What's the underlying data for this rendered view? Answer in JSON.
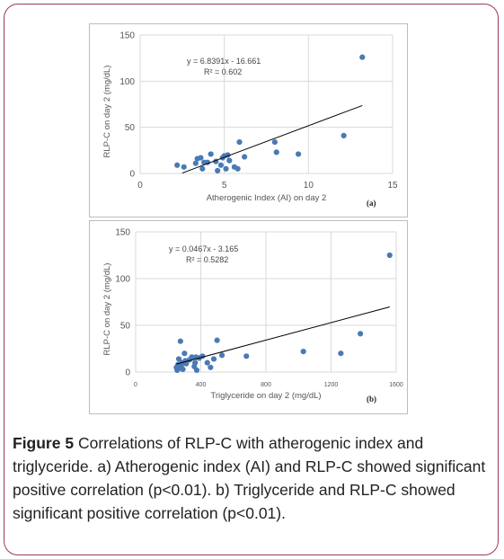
{
  "caption": {
    "label": "Figure 5",
    "text": "Correlations of RLP-C with atherogenic index and triglyceride. a) Atherogenic index (AI) and RLP-C showed significant positive correlation (p<0.01). b) Triglyceride and RLP-C showed significant positive correlation (p<0.01)."
  },
  "colors": {
    "border": "#9b3a55",
    "point": "#4a7ab5",
    "grid": "#d9d9d9",
    "trend": "#000000"
  },
  "chart_data": [
    {
      "type": "scatter",
      "panel_tag": "(a)",
      "xlabel": "Atherogenic Index (AI) on day 2",
      "ylabel": "RLP-C on day 2 (mg/dL)",
      "xlim": [
        0,
        15
      ],
      "ylim": [
        0,
        150
      ],
      "xticks": [
        "0",
        "5",
        "10",
        "15"
      ],
      "yticks": [
        "0",
        "50",
        "100",
        "150"
      ],
      "grid": "vertical and horizontal",
      "equation": "y = 6.8391x - 16.661",
      "r2": "R² = 0.602",
      "trendline": {
        "slope": 6.8391,
        "intercept": -16.661,
        "x_from": 2.5,
        "x_to": 13.2
      },
      "points": [
        [
          2.2,
          9
        ],
        [
          2.6,
          7
        ],
        [
          3.3,
          11
        ],
        [
          3.4,
          16
        ],
        [
          3.6,
          17
        ],
        [
          3.7,
          5
        ],
        [
          3.8,
          12
        ],
        [
          4.0,
          12
        ],
        [
          4.2,
          21
        ],
        [
          4.5,
          13
        ],
        [
          4.6,
          3
        ],
        [
          4.8,
          9
        ],
        [
          4.9,
          17
        ],
        [
          5.0,
          19
        ],
        [
          5.1,
          5
        ],
        [
          5.2,
          20
        ],
        [
          5.3,
          14
        ],
        [
          5.6,
          7
        ],
        [
          5.8,
          5
        ],
        [
          5.9,
          34
        ],
        [
          6.2,
          18
        ],
        [
          8.0,
          34
        ],
        [
          8.1,
          23
        ],
        [
          9.4,
          21
        ],
        [
          12.1,
          41
        ],
        [
          13.2,
          126
        ]
      ]
    },
    {
      "type": "scatter",
      "panel_tag": "(b)",
      "xlabel": "Triglyceride on day 2 (mg/dL)",
      "ylabel": "RLP-C on day 2 (mg/dL)",
      "xlim": [
        0,
        1600
      ],
      "ylim": [
        0,
        150
      ],
      "xticks": [
        "0",
        "400",
        "800",
        "1200",
        "1600"
      ],
      "yticks": [
        "0",
        "50",
        "100",
        "150"
      ],
      "grid": "vertical and horizontal",
      "equation": "y = 0.0467x - 3.165",
      "r2": "R² = 0.5282",
      "trendline": {
        "slope": 0.0467,
        "intercept": -3.165,
        "x_from": 250,
        "x_to": 1560
      },
      "points": [
        [
          250,
          5
        ],
        [
          255,
          2
        ],
        [
          260,
          8
        ],
        [
          265,
          14
        ],
        [
          270,
          4
        ],
        [
          275,
          33
        ],
        [
          280,
          7
        ],
        [
          285,
          10
        ],
        [
          290,
          3
        ],
        [
          300,
          20
        ],
        [
          305,
          12
        ],
        [
          310,
          9
        ],
        [
          330,
          13
        ],
        [
          345,
          16
        ],
        [
          360,
          6
        ],
        [
          365,
          10
        ],
        [
          370,
          16
        ],
        [
          375,
          2
        ],
        [
          390,
          15
        ],
        [
          410,
          17
        ],
        [
          440,
          10
        ],
        [
          460,
          5
        ],
        [
          480,
          14
        ],
        [
          500,
          34
        ],
        [
          530,
          18
        ],
        [
          680,
          17
        ],
        [
          1030,
          22
        ],
        [
          1260,
          20
        ],
        [
          1380,
          41
        ],
        [
          1560,
          125
        ]
      ]
    }
  ]
}
